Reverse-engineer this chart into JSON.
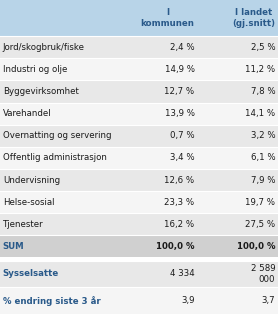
{
  "header_bg": "#b8d4e8",
  "row_bg_odd": "#e8e8e8",
  "row_bg_even": "#f5f5f5",
  "sum_bg": "#d0d0d0",
  "text_color": "#2a5a8a",
  "dark_text": "#1a1a1a",
  "col1_header": "I\nkommunen",
  "col2_header": "I landet\n(gj.snitt)",
  "rows": [
    [
      "Jord/skogbruk/fiske",
      "2,4 %",
      "2,5 %"
    ],
    [
      "Industri og olje",
      "14,9 %",
      "11,2 %"
    ],
    [
      "Byggevirksomhet",
      "12,7 %",
      "7,8 %"
    ],
    [
      "Varehandel",
      "13,9 %",
      "14,1 %"
    ],
    [
      "Overnatting og servering",
      "0,7 %",
      "3,2 %"
    ],
    [
      "Offentlig administrasjon",
      "3,4 %",
      "6,1 %"
    ],
    [
      "Undervisning",
      "12,6 %",
      "7,9 %"
    ],
    [
      "Helse-sosial",
      "23,3 %",
      "19,7 %"
    ],
    [
      "Tjenester",
      "16,2 %",
      "27,5 %"
    ],
    [
      "SUM",
      "100,0 %",
      "100,0 %"
    ]
  ],
  "extra_rows": [
    [
      "Sysselsatte",
      "4 334",
      "2 589\n000"
    ],
    [
      "% endring siste 3 år",
      "3,9",
      "3,7"
    ]
  ],
  "figsize": [
    2.78,
    3.14
  ],
  "dpi": 100
}
